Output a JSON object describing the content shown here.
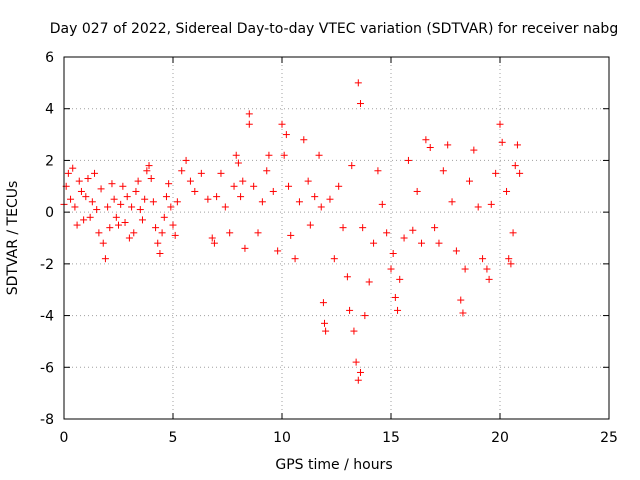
{
  "chart_data": {
    "type": "scatter",
    "title": "Day 027 of 2022, Sidereal Day-to-day VTEC variation (SDTVAR) for receiver nabg",
    "xlabel": "GPS time / hours",
    "ylabel": "SDTVAR / TECUs",
    "xlim": [
      0,
      25
    ],
    "ylim": [
      -8,
      6
    ],
    "xticks": [
      0,
      5,
      10,
      15,
      20,
      25
    ],
    "yticks": [
      -8,
      -6,
      -4,
      -2,
      0,
      2,
      4,
      6
    ],
    "xtick_labels": [
      "0",
      "5",
      "10",
      "15",
      "20",
      "25"
    ],
    "ytick_labels": [
      "-8",
      "-6",
      "-4",
      "-2",
      "0",
      "2",
      "4",
      "6"
    ],
    "grid": true,
    "marker": "+",
    "color": "#ff0000",
    "series": [
      {
        "name": "SDTVAR",
        "points": [
          [
            0.0,
            0.3
          ],
          [
            0.1,
            1.0
          ],
          [
            0.2,
            1.5
          ],
          [
            0.3,
            0.5
          ],
          [
            0.4,
            1.7
          ],
          [
            0.5,
            0.2
          ],
          [
            0.6,
            -0.5
          ],
          [
            0.7,
            1.2
          ],
          [
            0.8,
            0.8
          ],
          [
            0.9,
            -0.3
          ],
          [
            1.0,
            0.6
          ],
          [
            1.1,
            1.3
          ],
          [
            1.2,
            -0.2
          ],
          [
            1.3,
            0.4
          ],
          [
            1.4,
            1.5
          ],
          [
            1.5,
            0.1
          ],
          [
            1.6,
            -0.8
          ],
          [
            1.7,
            0.9
          ],
          [
            1.8,
            -1.2
          ],
          [
            1.9,
            -1.8
          ],
          [
            2.0,
            0.2
          ],
          [
            2.1,
            -0.6
          ],
          [
            2.2,
            1.1
          ],
          [
            2.3,
            0.5
          ],
          [
            2.4,
            -0.2
          ],
          [
            2.5,
            -0.5
          ],
          [
            2.6,
            0.3
          ],
          [
            2.7,
            1.0
          ],
          [
            2.8,
            -0.4
          ],
          [
            2.9,
            0.6
          ],
          [
            3.0,
            -1.0
          ],
          [
            3.1,
            0.2
          ],
          [
            3.2,
            -0.8
          ],
          [
            3.3,
            0.8
          ],
          [
            3.4,
            1.2
          ],
          [
            3.5,
            0.1
          ],
          [
            3.6,
            -0.3
          ],
          [
            3.7,
            0.5
          ],
          [
            3.8,
            1.6
          ],
          [
            3.9,
            1.8
          ],
          [
            4.0,
            1.3
          ],
          [
            4.1,
            0.4
          ],
          [
            4.2,
            -0.6
          ],
          [
            4.3,
            -1.2
          ],
          [
            4.4,
            -1.6
          ],
          [
            4.5,
            -0.8
          ],
          [
            4.6,
            -0.2
          ],
          [
            4.7,
            0.6
          ],
          [
            4.8,
            1.1
          ],
          [
            4.9,
            0.2
          ],
          [
            5.0,
            -0.5
          ],
          [
            5.1,
            -0.9
          ],
          [
            5.2,
            0.4
          ],
          [
            5.4,
            1.6
          ],
          [
            5.6,
            2.0
          ],
          [
            5.8,
            1.2
          ],
          [
            6.0,
            0.8
          ],
          [
            6.3,
            1.5
          ],
          [
            6.6,
            0.5
          ],
          [
            6.8,
            -1.0
          ],
          [
            6.9,
            -1.2
          ],
          [
            7.0,
            0.6
          ],
          [
            7.2,
            1.5
          ],
          [
            7.4,
            0.2
          ],
          [
            7.6,
            -0.8
          ],
          [
            7.8,
            1.0
          ],
          [
            7.9,
            2.2
          ],
          [
            8.0,
            1.9
          ],
          [
            8.1,
            0.6
          ],
          [
            8.2,
            1.2
          ],
          [
            8.3,
            -1.4
          ],
          [
            8.5,
            3.8
          ],
          [
            8.5,
            3.4
          ],
          [
            8.7,
            1.0
          ],
          [
            8.9,
            -0.8
          ],
          [
            9.1,
            0.4
          ],
          [
            9.3,
            1.6
          ],
          [
            9.4,
            2.2
          ],
          [
            9.6,
            0.8
          ],
          [
            9.8,
            -1.5
          ],
          [
            10.0,
            3.4
          ],
          [
            10.1,
            2.2
          ],
          [
            10.2,
            3.0
          ],
          [
            10.3,
            1.0
          ],
          [
            10.4,
            -0.9
          ],
          [
            10.6,
            -1.8
          ],
          [
            10.8,
            0.4
          ],
          [
            11.0,
            2.8
          ],
          [
            11.2,
            1.2
          ],
          [
            11.3,
            -0.5
          ],
          [
            11.5,
            0.6
          ],
          [
            11.7,
            2.2
          ],
          [
            11.8,
            0.2
          ],
          [
            11.9,
            -3.5
          ],
          [
            11.95,
            -4.3
          ],
          [
            12.0,
            -4.6
          ],
          [
            12.2,
            0.5
          ],
          [
            12.4,
            -1.8
          ],
          [
            12.6,
            1.0
          ],
          [
            12.8,
            -0.6
          ],
          [
            13.0,
            -2.5
          ],
          [
            13.1,
            -3.8
          ],
          [
            13.2,
            1.8
          ],
          [
            13.3,
            -4.6
          ],
          [
            13.4,
            -5.8
          ],
          [
            13.5,
            -6.5
          ],
          [
            13.5,
            5.0
          ],
          [
            13.6,
            4.2
          ],
          [
            13.6,
            -6.2
          ],
          [
            13.7,
            -0.6
          ],
          [
            13.8,
            -4.0
          ],
          [
            14.0,
            -2.7
          ],
          [
            14.2,
            -1.2
          ],
          [
            14.4,
            1.6
          ],
          [
            14.6,
            0.3
          ],
          [
            14.8,
            -0.8
          ],
          [
            15.0,
            -2.2
          ],
          [
            15.1,
            -1.6
          ],
          [
            15.2,
            -3.3
          ],
          [
            15.3,
            -3.8
          ],
          [
            15.4,
            -2.6
          ],
          [
            15.6,
            -1.0
          ],
          [
            15.8,
            2.0
          ],
          [
            16.0,
            -0.7
          ],
          [
            16.2,
            0.8
          ],
          [
            16.4,
            -1.2
          ],
          [
            16.6,
            2.8
          ],
          [
            16.8,
            2.5
          ],
          [
            17.0,
            -0.6
          ],
          [
            17.2,
            -1.2
          ],
          [
            17.4,
            1.6
          ],
          [
            17.6,
            2.6
          ],
          [
            17.8,
            0.4
          ],
          [
            18.0,
            -1.5
          ],
          [
            18.2,
            -3.4
          ],
          [
            18.3,
            -3.9
          ],
          [
            18.4,
            -2.2
          ],
          [
            18.6,
            1.2
          ],
          [
            18.8,
            2.4
          ],
          [
            19.0,
            0.2
          ],
          [
            19.2,
            -1.8
          ],
          [
            19.4,
            -2.2
          ],
          [
            19.5,
            -2.6
          ],
          [
            19.6,
            0.3
          ],
          [
            19.8,
            1.5
          ],
          [
            20.0,
            3.4
          ],
          [
            20.1,
            2.7
          ],
          [
            20.3,
            0.8
          ],
          [
            20.4,
            -1.8
          ],
          [
            20.5,
            -2.0
          ],
          [
            20.6,
            -0.8
          ],
          [
            20.7,
            1.8
          ],
          [
            20.8,
            2.6
          ],
          [
            20.9,
            1.5
          ]
        ]
      }
    ]
  }
}
